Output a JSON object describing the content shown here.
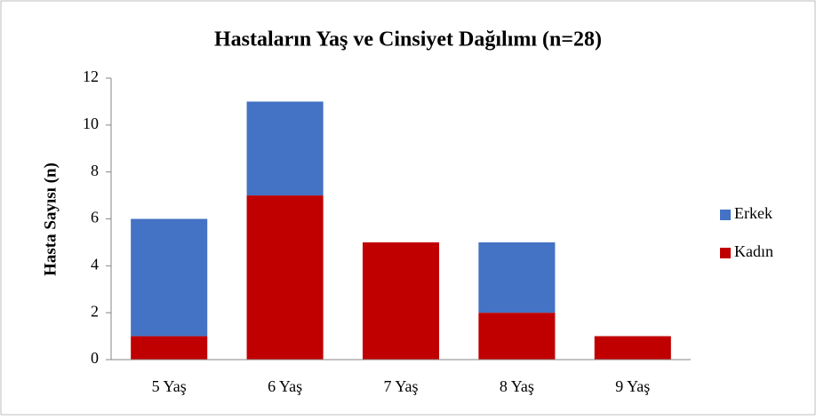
{
  "chart_data": {
    "type": "stacked_bar",
    "title": "Hastaların Yaş ve Cinsiyet Dağılımı (n=28)",
    "y_label": "Hasta Sayısı (n)",
    "categories": [
      "5 Yaş",
      "6 Yaş",
      "7 Yaş",
      "8 Yaş",
      "9 Yaş"
    ],
    "series": [
      {
        "name": "Kadın",
        "color": "#c00000",
        "values": [
          1,
          7,
          5,
          2,
          1
        ]
      },
      {
        "name": "Erkek",
        "color": "#4472c4",
        "values": [
          5,
          4,
          0,
          3,
          0
        ]
      }
    ],
    "ylim": [
      0,
      12
    ],
    "yticks": [
      0,
      2,
      4,
      6,
      8,
      10,
      12
    ],
    "grid": false,
    "legend": "right"
  }
}
